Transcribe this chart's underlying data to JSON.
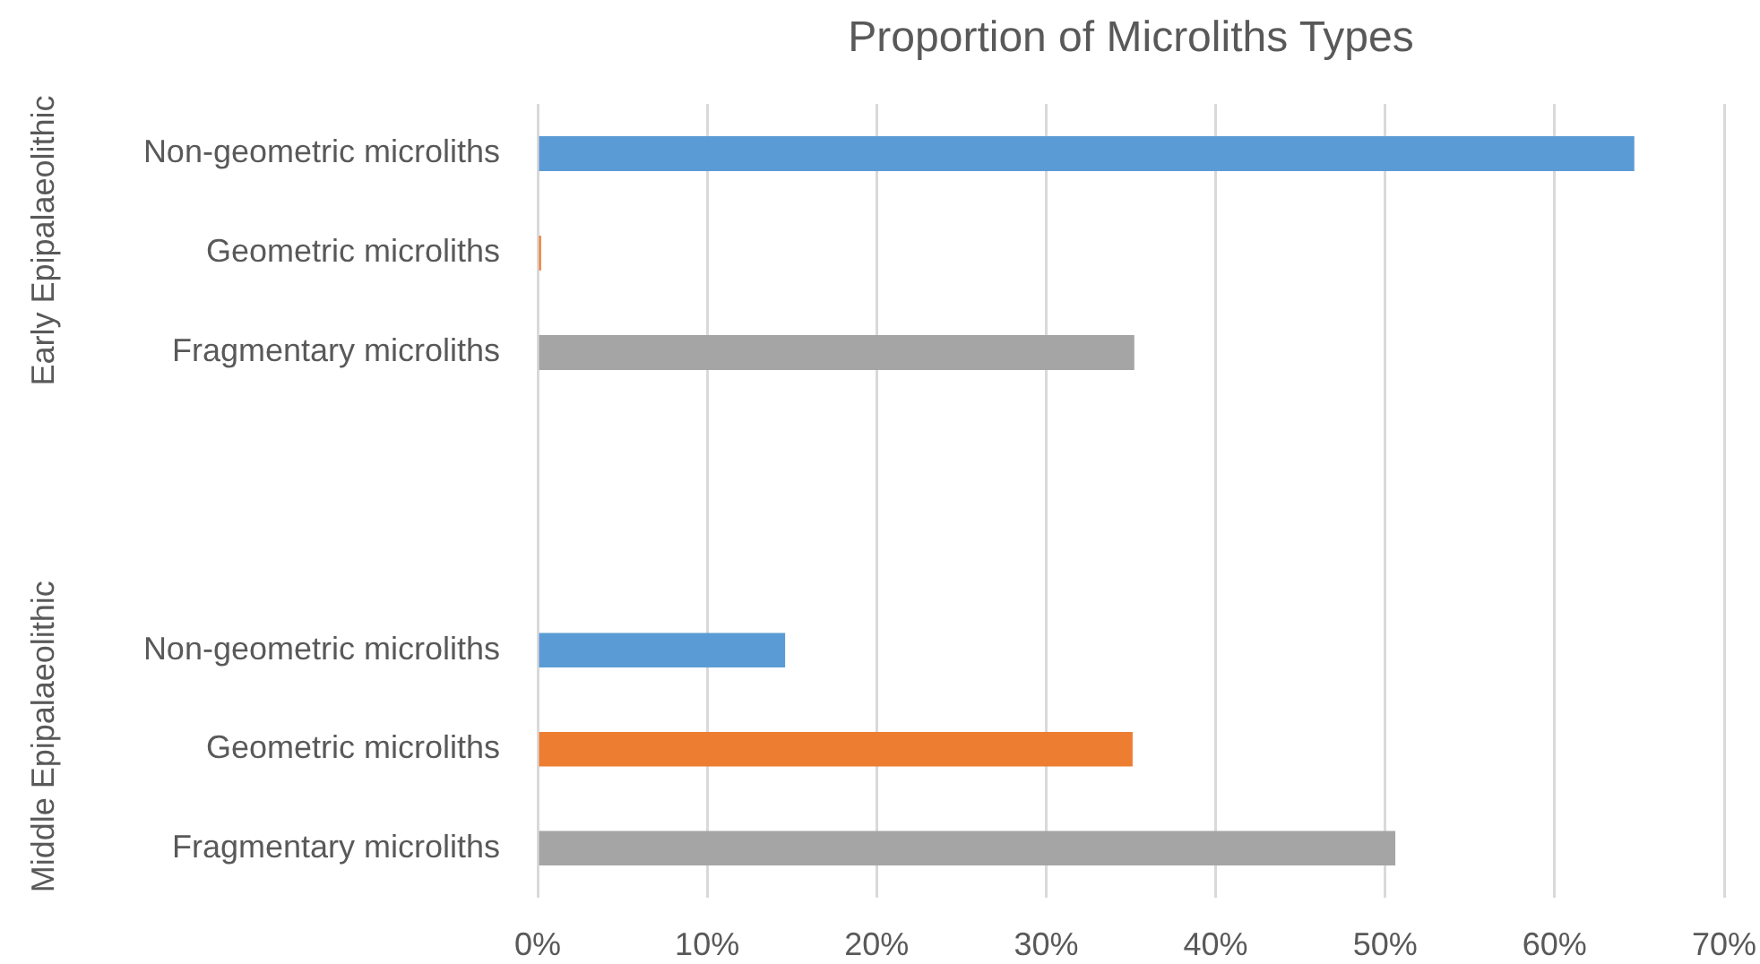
{
  "chart_data": [
    {
      "type": "bar",
      "orientation": "horizontal",
      "title": "Proportion of Microliths Types",
      "ylabel": "Early Epipalaeolithic",
      "categories": [
        "Non-geometric microliths",
        "Geometric microliths",
        "Fragmentary microliths"
      ],
      "values": [
        64.7,
        0.2,
        35.2
      ],
      "colors": [
        "#5b9bd5",
        "#ed7d31",
        "#a5a5a5"
      ],
      "xlim": [
        0,
        70
      ],
      "xticks": [
        0,
        10,
        20,
        30,
        40,
        50,
        60,
        70
      ],
      "grid": "x",
      "tick_labels": "y",
      "legend": false
    },
    {
      "type": "bar",
      "orientation": "horizontal",
      "ylabel": "Middle Epipalaeolithic",
      "categories": [
        "Non-geometric microliths",
        "Geometric microliths",
        "Fragmentary microliths"
      ],
      "values": [
        14.6,
        35.1,
        50.6
      ],
      "colors": [
        "#5b9bd5",
        "#ed7d31",
        "#a5a5a5"
      ],
      "xlim": [
        0,
        70
      ],
      "xticks": [
        {
          "value": 0,
          "label": "0%"
        },
        {
          "value": 10,
          "label": "10%"
        },
        {
          "value": 20,
          "label": "20%"
        },
        {
          "value": 30,
          "label": "30%"
        },
        {
          "value": 40,
          "label": "40%"
        },
        {
          "value": 50,
          "label": "50%"
        },
        {
          "value": 60,
          "label": "60%"
        },
        {
          "value": 70,
          "label": "70%"
        }
      ],
      "grid": "x",
      "legend": false
    }
  ]
}
